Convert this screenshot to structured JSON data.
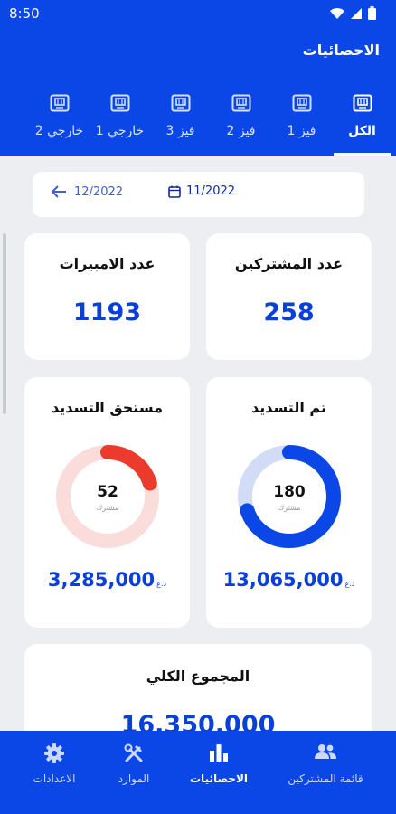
{
  "status": {
    "time": "8:50",
    "icons": [
      "wifi-icon",
      "signal-icon",
      "battery-icon"
    ]
  },
  "appbar": {
    "title": "الاحصائيات"
  },
  "tabs": [
    {
      "label": "الكل",
      "active": true
    },
    {
      "label": "فيز 1",
      "active": false
    },
    {
      "label": "فيز 2",
      "active": false
    },
    {
      "label": "فيز 3",
      "active": false
    },
    {
      "label": "خارجي 1",
      "active": false
    },
    {
      "label": "خارجي 2",
      "active": false
    }
  ],
  "dates": {
    "current": "11/2022",
    "previous": "12/2022"
  },
  "cards": {
    "subscribers": {
      "title": "عدد المشتركين",
      "value": "258"
    },
    "amperes": {
      "title": "عدد الامبيرات",
      "value": "1193"
    },
    "paid": {
      "title": "تم التسديد",
      "count": "180",
      "unit": "مشترك",
      "amount": "13,065,000",
      "currency": "د.ع",
      "fraction": 0.698,
      "color": "#0a47e6",
      "track": "#d3dcf7"
    },
    "due": {
      "title": "مستحق التسديد",
      "count": "52",
      "unit": "مشترك",
      "amount": "3,285,000",
      "currency": "د.ع",
      "fraction": 0.2016,
      "color": "#ea3b2d",
      "track": "#fadcda"
    },
    "total": {
      "title": "المجموع الكلي",
      "amount": "16,350,000"
    }
  },
  "nav": [
    {
      "label": "قائمة المشتركين",
      "icon": "people-icon",
      "active": false
    },
    {
      "label": "الاحصائيات",
      "icon": "bar-chart-icon",
      "active": true
    },
    {
      "label": "الموارد",
      "icon": "tools-icon",
      "active": false
    },
    {
      "label": "الاعدادات",
      "icon": "gear-icon",
      "active": false
    }
  ],
  "colors": {
    "primary": "#0a47e6",
    "background": "#eceef2"
  }
}
